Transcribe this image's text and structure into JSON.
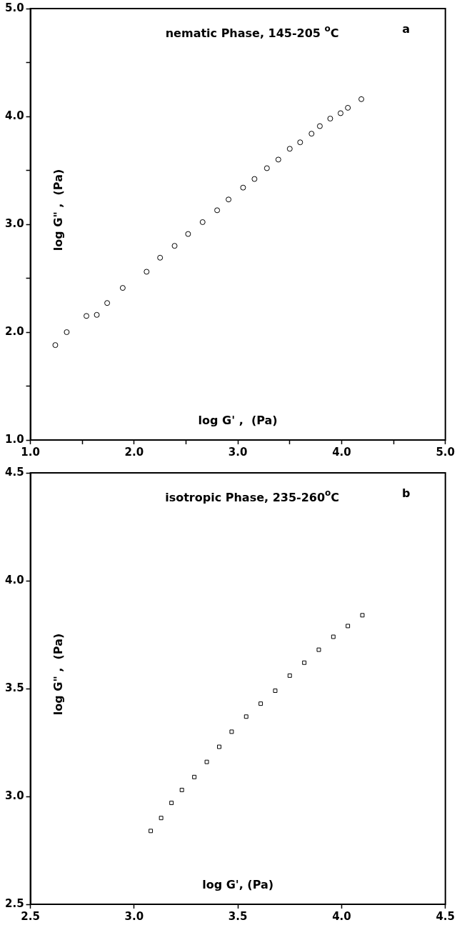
{
  "chart_data": [
    {
      "type": "scatter",
      "title": "nematic Phase, 145-205 $^{o}$C",
      "xlabel": "log G' ,  (Pa)",
      "ylabel": "log G\" ,  (Pa)",
      "annotations": [
        "a"
      ],
      "marker": "circle",
      "grid": false,
      "xlim": [
        1.0,
        5.0
      ],
      "ylim": [
        1.0,
        5.0
      ],
      "xticks": [
        {
          "value": 1.0,
          "label": "1.0"
        },
        {
          "value": 1.5,
          "label": null
        },
        {
          "value": 2.0,
          "label": "2.0"
        },
        {
          "value": 2.5,
          "label": null
        },
        {
          "value": 3.0,
          "label": "3.0"
        },
        {
          "value": 3.5,
          "label": null
        },
        {
          "value": 4.0,
          "label": "4.0"
        },
        {
          "value": 4.5,
          "label": null
        },
        {
          "value": 5.0,
          "label": "5.0"
        }
      ],
      "yticks": [
        {
          "value": 1.0,
          "label": "1.0"
        },
        {
          "value": 1.5,
          "label": null
        },
        {
          "value": 2.0,
          "label": "2.0"
        },
        {
          "value": 2.5,
          "label": null
        },
        {
          "value": 3.0,
          "label": "3.0"
        },
        {
          "value": 3.5,
          "label": null
        },
        {
          "value": 4.0,
          "label": "4.0"
        },
        {
          "value": 4.5,
          "label": null
        },
        {
          "value": 5.0,
          "label": "5.0"
        }
      ],
      "series": [
        {
          "color": "#000000",
          "x": [
            1.24,
            1.35,
            1.54,
            1.64,
            1.74,
            1.89,
            2.12,
            2.25,
            2.39,
            2.52,
            2.66,
            2.8,
            2.91,
            3.05,
            3.16,
            3.28,
            3.39,
            3.5,
            3.6,
            3.71,
            3.79,
            3.89,
            3.99,
            4.06,
            4.19
          ],
          "values": [
            1.88,
            2.0,
            2.15,
            2.16,
            2.27,
            2.41,
            2.56,
            2.69,
            2.8,
            2.91,
            3.02,
            3.13,
            3.23,
            3.34,
            3.42,
            3.52,
            3.6,
            3.7,
            3.76,
            3.84,
            3.91,
            3.98,
            4.03,
            4.08,
            4.16
          ]
        }
      ]
    },
    {
      "type": "scatter",
      "title": "isotropic Phase, 235-260$^{o}$C",
      "xlabel": "log G', (Pa)",
      "ylabel": "log G\" ,  (Pa)",
      "annotations": [
        "b"
      ],
      "marker": "square",
      "grid": false,
      "xlim": [
        2.5,
        4.5
      ],
      "ylim": [
        2.5,
        4.5
      ],
      "xticks": [
        {
          "value": 2.5,
          "label": "2.5"
        },
        {
          "value": 3.0,
          "label": "3.0"
        },
        {
          "value": 3.5,
          "label": "3.5"
        },
        {
          "value": 4.0,
          "label": "4.0"
        },
        {
          "value": 4.5,
          "label": "4.5"
        }
      ],
      "yticks": [
        {
          "value": 2.5,
          "label": "2.5"
        },
        {
          "value": 3.0,
          "label": "3.0"
        },
        {
          "value": 3.5,
          "label": "3.5"
        },
        {
          "value": 4.0,
          "label": "4.0"
        },
        {
          "value": 4.5,
          "label": "4.5"
        }
      ],
      "series": [
        {
          "color": "#000000",
          "x": [
            3.08,
            3.13,
            3.18,
            3.23,
            3.29,
            3.35,
            3.41,
            3.47,
            3.54,
            3.61,
            3.68,
            3.75,
            3.82,
            3.89,
            3.96,
            4.03,
            4.1
          ],
          "values": [
            2.84,
            2.9,
            2.97,
            3.03,
            3.09,
            3.16,
            3.23,
            3.3,
            3.37,
            3.43,
            3.49,
            3.56,
            3.62,
            3.68,
            3.74,
            3.79,
            3.84
          ]
        }
      ]
    }
  ]
}
